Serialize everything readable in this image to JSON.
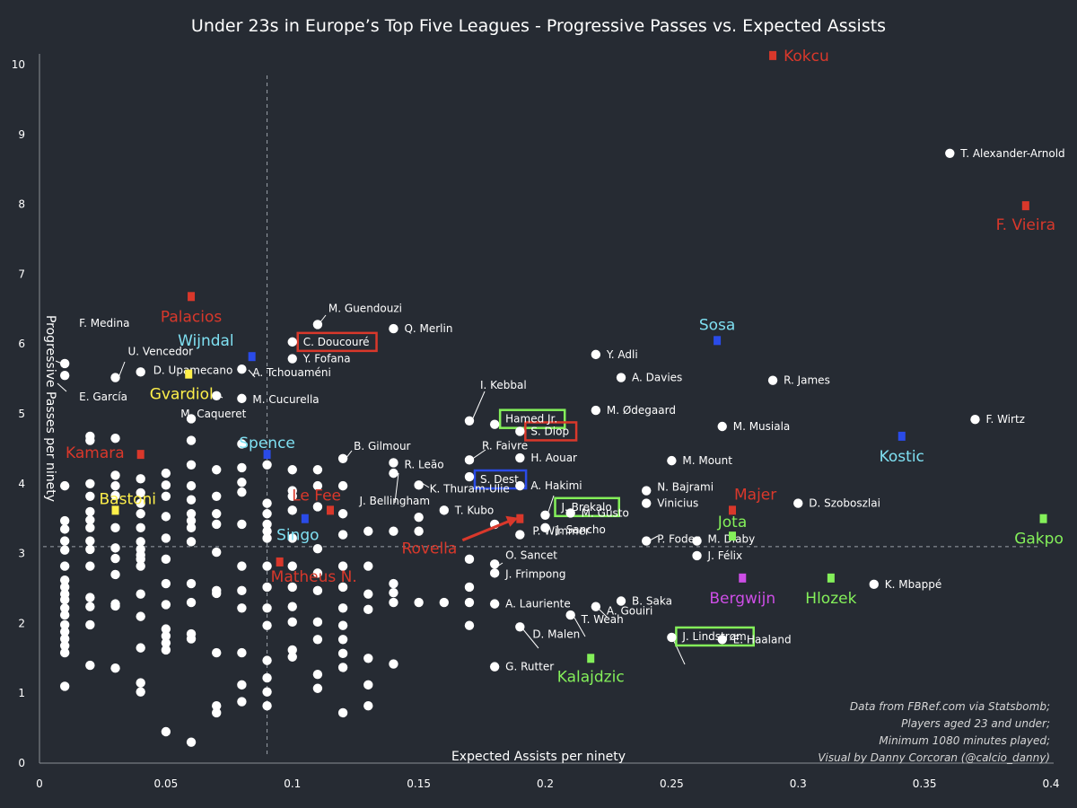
{
  "chart_data": {
    "type": "scatter",
    "title": "Under 23s in Europe’s Top Five Leagues - Progressive Passes vs. Expected Assists",
    "xlabel": "Expected Assists per ninety",
    "ylabel": "Progressive Passes per ninety",
    "xlim": [
      0,
      0.4
    ],
    "ylim": [
      0,
      10.3
    ],
    "x_ticks": [
      "0",
      "0.05",
      "0.1",
      "0.15",
      "0.2",
      "0.25",
      "0.3",
      "0.35",
      "0.4"
    ],
    "y_ticks": [
      "0",
      "1",
      "2",
      "3",
      "4",
      "5",
      "6",
      "7",
      "8",
      "9",
      "10"
    ],
    "reference_lines": {
      "x": 0.09,
      "y": 3.1
    },
    "grid": false,
    "credits": [
      "Data from FBRef.com via Statsbomb;",
      "Players aged 23 and under;",
      "Minimum 1080 minutes played;",
      "Visual by Danny Corcoran (@calcio_danny)"
    ],
    "colors": {
      "background": "#262b33",
      "points": "#ffffff",
      "red": "#d9382b",
      "blue": "#2a4be8",
      "cyan": "#7fe0f2",
      "yellow": "#fff04a",
      "green": "#84f05a",
      "magenta": "#cd4ee6"
    },
    "labeled_points": [
      {
        "name": "T. Alexander-Arnold",
        "x": 0.36,
        "y": 8.73
      },
      {
        "name": "F. Medina",
        "x": 0.01,
        "y": 5.72
      },
      {
        "name": "E. García",
        "x": 0.01,
        "y": 5.55
      },
      {
        "name": "U. Vencedor",
        "x": 0.03,
        "y": 5.52
      },
      {
        "name": "D. Upamecano",
        "x": 0.04,
        "y": 5.6
      },
      {
        "name": "A. Tchouaméni",
        "x": 0.08,
        "y": 5.64
      },
      {
        "name": "M. Caqueret",
        "x": 0.07,
        "y": 5.26
      },
      {
        "name": "M. Cucurella",
        "x": 0.08,
        "y": 5.22
      },
      {
        "name": "M. Guendouzi",
        "x": 0.11,
        "y": 6.28
      },
      {
        "name": "Q. Merlin",
        "x": 0.14,
        "y": 6.22
      },
      {
        "name": "C. Doucouré",
        "x": 0.1,
        "y": 6.03
      },
      {
        "name": "Y. Fofana",
        "x": 0.1,
        "y": 5.79
      },
      {
        "name": "Y. Adli",
        "x": 0.22,
        "y": 5.85
      },
      {
        "name": "A. Davies",
        "x": 0.23,
        "y": 5.52
      },
      {
        "name": "R. James",
        "x": 0.29,
        "y": 5.48
      },
      {
        "name": "I. Kebbal",
        "x": 0.17,
        "y": 4.9
      },
      {
        "name": "Hamed Jr.",
        "x": 0.18,
        "y": 4.85
      },
      {
        "name": "M. Ødegaard",
        "x": 0.22,
        "y": 5.05
      },
      {
        "name": "M. Musiala",
        "x": 0.27,
        "y": 4.82
      },
      {
        "name": "F. Wirtz",
        "x": 0.37,
        "y": 4.92
      },
      {
        "name": "S. Diop",
        "x": 0.19,
        "y": 4.75
      },
      {
        "name": "B. Gilmour",
        "x": 0.12,
        "y": 4.36
      },
      {
        "name": "R. Leão",
        "x": 0.14,
        "y": 4.3
      },
      {
        "name": "R. Faivre",
        "x": 0.17,
        "y": 4.34
      },
      {
        "name": "H. Aouar",
        "x": 0.19,
        "y": 4.37
      },
      {
        "name": "M. Mount",
        "x": 0.25,
        "y": 4.33
      },
      {
        "name": "S. Dest",
        "x": 0.17,
        "y": 4.1
      },
      {
        "name": "A. Hakimi",
        "x": 0.19,
        "y": 3.97
      },
      {
        "name": "K. Thuram-Ulie",
        "x": 0.15,
        "y": 3.98
      },
      {
        "name": "N. Bajrami",
        "x": 0.24,
        "y": 3.9
      },
      {
        "name": "J. Brekalo",
        "x": 0.2,
        "y": 3.55
      },
      {
        "name": "Vinicius",
        "x": 0.24,
        "y": 3.72
      },
      {
        "name": "D. Szoboszlai",
        "x": 0.3,
        "y": 3.72
      },
      {
        "name": "J. Bellingham",
        "x": 0.14,
        "y": 4.15
      },
      {
        "name": "T. Kubo",
        "x": 0.16,
        "y": 3.62
      },
      {
        "name": "M. Gusto",
        "x": 0.21,
        "y": 3.58
      },
      {
        "name": "J. Sancho",
        "x": 0.2,
        "y": 3.37
      },
      {
        "name": "P. Foden",
        "x": 0.24,
        "y": 3.18
      },
      {
        "name": "M. Diaby",
        "x": 0.26,
        "y": 3.18
      },
      {
        "name": "P. Wimmer",
        "x": 0.19,
        "y": 3.27
      },
      {
        "name": "J. Félix",
        "x": 0.26,
        "y": 2.97
      },
      {
        "name": "O. Sancet",
        "x": 0.18,
        "y": 2.85
      },
      {
        "name": "J. Frimpong",
        "x": 0.18,
        "y": 2.72
      },
      {
        "name": "K. Mbappé",
        "x": 0.33,
        "y": 2.56
      },
      {
        "name": "B. Saka",
        "x": 0.23,
        "y": 2.32
      },
      {
        "name": "A. Lauriente",
        "x": 0.18,
        "y": 2.28
      },
      {
        "name": "A. Gouiri",
        "x": 0.22,
        "y": 2.24
      },
      {
        "name": "T. Weah",
        "x": 0.21,
        "y": 2.12
      },
      {
        "name": "D. Malen",
        "x": 0.19,
        "y": 1.95
      },
      {
        "name": "E. Haaland",
        "x": 0.27,
        "y": 1.77
      },
      {
        "name": "J. Lindstrøm",
        "x": 0.25,
        "y": 1.8
      },
      {
        "name": "G. Rutter",
        "x": 0.18,
        "y": 1.38
      }
    ],
    "highlighted_players": [
      {
        "name": "Kokcu",
        "x": 0.29,
        "y": 10.13,
        "color": "red"
      },
      {
        "name": "F. Vieira",
        "x": 0.39,
        "y": 7.98,
        "color": "red"
      },
      {
        "name": "Palacios",
        "x": 0.06,
        "y": 6.68,
        "color": "red"
      },
      {
        "name": "Wijndal",
        "x": 0.084,
        "y": 5.82,
        "color": "blue",
        "label_color": "cyan"
      },
      {
        "name": "Gvardiol",
        "x": 0.059,
        "y": 5.57,
        "color": "yellow"
      },
      {
        "name": "Sosa",
        "x": 0.268,
        "y": 6.05,
        "color": "blue",
        "label_color": "cyan"
      },
      {
        "name": "Kostic",
        "x": 0.341,
        "y": 4.68,
        "color": "blue",
        "label_color": "cyan"
      },
      {
        "name": "Kamara",
        "x": 0.04,
        "y": 4.42,
        "color": "red"
      },
      {
        "name": "Spence",
        "x": 0.09,
        "y": 4.42,
        "color": "blue",
        "label_color": "cyan"
      },
      {
        "name": "Bastoni",
        "x": 0.03,
        "y": 3.62,
        "color": "yellow"
      },
      {
        "name": "Le Fee",
        "x": 0.115,
        "y": 3.62,
        "color": "red"
      },
      {
        "name": "Singo",
        "x": 0.105,
        "y": 3.5,
        "color": "blue",
        "label_color": "cyan"
      },
      {
        "name": "Majer",
        "x": 0.274,
        "y": 3.62,
        "color": "red"
      },
      {
        "name": "Jota",
        "x": 0.274,
        "y": 3.25,
        "color": "green"
      },
      {
        "name": "Gakpo",
        "x": 0.397,
        "y": 3.5,
        "color": "green"
      },
      {
        "name": "Rovella",
        "x": 0.19,
        "y": 3.5,
        "color": "red"
      },
      {
        "name": "Matheus N.",
        "x": 0.095,
        "y": 2.88,
        "color": "red"
      },
      {
        "name": "Bergwijn",
        "x": 0.278,
        "y": 2.65,
        "color": "magenta"
      },
      {
        "name": "Hlozek",
        "x": 0.313,
        "y": 2.65,
        "color": "green"
      },
      {
        "name": "Kalajdzic",
        "x": 0.218,
        "y": 1.5,
        "color": "green"
      }
    ],
    "boxed_labels": [
      {
        "name": "C. Doucouré",
        "color": "red"
      },
      {
        "name": "Hamed Jr.",
        "color": "green"
      },
      {
        "name": "S. Diop",
        "color": "red"
      },
      {
        "name": "S. Dest",
        "color": "blue"
      },
      {
        "name": "J. Brekalo",
        "color": "green"
      },
      {
        "name": "J. Lindstrøm",
        "color": "green"
      }
    ],
    "unlabeled_points": [
      [
        0.01,
        3.97
      ],
      [
        0.01,
        3.47
      ],
      [
        0.01,
        3.35
      ],
      [
        0.01,
        3.18
      ],
      [
        0.01,
        3.05
      ],
      [
        0.01,
        2.82
      ],
      [
        0.01,
        2.62
      ],
      [
        0.01,
        2.52
      ],
      [
        0.01,
        2.42
      ],
      [
        0.01,
        2.34
      ],
      [
        0.01,
        2.22
      ],
      [
        0.01,
        2.12
      ],
      [
        0.01,
        1.98
      ],
      [
        0.01,
        1.88
      ],
      [
        0.01,
        1.78
      ],
      [
        0.01,
        1.68
      ],
      [
        0.01,
        1.58
      ],
      [
        0.01,
        1.1
      ],
      [
        0.02,
        4.68
      ],
      [
        0.02,
        4.62
      ],
      [
        0.02,
        4.0
      ],
      [
        0.02,
        3.82
      ],
      [
        0.02,
        3.6
      ],
      [
        0.02,
        3.48
      ],
      [
        0.02,
        3.37
      ],
      [
        0.02,
        3.18
      ],
      [
        0.02,
        3.06
      ],
      [
        0.02,
        2.82
      ],
      [
        0.02,
        2.37
      ],
      [
        0.02,
        2.24
      ],
      [
        0.02,
        1.98
      ],
      [
        0.02,
        1.4
      ],
      [
        0.03,
        4.65
      ],
      [
        0.03,
        4.12
      ],
      [
        0.03,
        3.97
      ],
      [
        0.03,
        3.83
      ],
      [
        0.03,
        3.37
      ],
      [
        0.03,
        3.08
      ],
      [
        0.03,
        2.93
      ],
      [
        0.03,
        2.7
      ],
      [
        0.03,
        2.28
      ],
      [
        0.03,
        2.25
      ],
      [
        0.03,
        1.36
      ],
      [
        0.04,
        4.07
      ],
      [
        0.04,
        3.87
      ],
      [
        0.04,
        3.72
      ],
      [
        0.04,
        3.57
      ],
      [
        0.04,
        3.37
      ],
      [
        0.04,
        3.17
      ],
      [
        0.04,
        3.06
      ],
      [
        0.04,
        2.98
      ],
      [
        0.04,
        2.92
      ],
      [
        0.04,
        2.82
      ],
      [
        0.04,
        2.42
      ],
      [
        0.04,
        2.1
      ],
      [
        0.04,
        1.65
      ],
      [
        0.04,
        1.15
      ],
      [
        0.04,
        1.02
      ],
      [
        0.05,
        4.15
      ],
      [
        0.05,
        3.98
      ],
      [
        0.05,
        3.82
      ],
      [
        0.05,
        3.53
      ],
      [
        0.05,
        3.22
      ],
      [
        0.05,
        2.92
      ],
      [
        0.05,
        2.57
      ],
      [
        0.05,
        2.27
      ],
      [
        0.05,
        1.92
      ],
      [
        0.05,
        1.82
      ],
      [
        0.05,
        1.72
      ],
      [
        0.05,
        1.62
      ],
      [
        0.05,
        0.45
      ],
      [
        0.06,
        4.93
      ],
      [
        0.06,
        4.62
      ],
      [
        0.06,
        4.27
      ],
      [
        0.06,
        3.97
      ],
      [
        0.06,
        3.77
      ],
      [
        0.06,
        3.57
      ],
      [
        0.06,
        3.47
      ],
      [
        0.06,
        3.37
      ],
      [
        0.06,
        3.17
      ],
      [
        0.06,
        2.57
      ],
      [
        0.06,
        2.3
      ],
      [
        0.06,
        1.85
      ],
      [
        0.06,
        1.78
      ],
      [
        0.06,
        0.3
      ],
      [
        0.07,
        4.2
      ],
      [
        0.07,
        3.82
      ],
      [
        0.07,
        3.57
      ],
      [
        0.07,
        3.42
      ],
      [
        0.07,
        3.02
      ],
      [
        0.07,
        2.47
      ],
      [
        0.07,
        2.43
      ],
      [
        0.07,
        1.58
      ],
      [
        0.07,
        0.82
      ],
      [
        0.07,
        0.72
      ],
      [
        0.08,
        4.57
      ],
      [
        0.08,
        4.23
      ],
      [
        0.08,
        4.02
      ],
      [
        0.08,
        3.88
      ],
      [
        0.08,
        3.42
      ],
      [
        0.08,
        2.82
      ],
      [
        0.08,
        2.47
      ],
      [
        0.08,
        2.22
      ],
      [
        0.08,
        1.58
      ],
      [
        0.08,
        1.12
      ],
      [
        0.08,
        0.88
      ],
      [
        0.09,
        4.27
      ],
      [
        0.09,
        3.72
      ],
      [
        0.09,
        3.57
      ],
      [
        0.09,
        3.42
      ],
      [
        0.09,
        3.32
      ],
      [
        0.09,
        3.22
      ],
      [
        0.09,
        2.82
      ],
      [
        0.09,
        2.52
      ],
      [
        0.09,
        2.22
      ],
      [
        0.09,
        1.97
      ],
      [
        0.09,
        1.47
      ],
      [
        0.09,
        1.22
      ],
      [
        0.09,
        1.02
      ],
      [
        0.09,
        0.82
      ],
      [
        0.1,
        4.2
      ],
      [
        0.1,
        3.9
      ],
      [
        0.1,
        3.82
      ],
      [
        0.1,
        3.62
      ],
      [
        0.1,
        3.22
      ],
      [
        0.1,
        2.82
      ],
      [
        0.1,
        2.52
      ],
      [
        0.1,
        2.24
      ],
      [
        0.1,
        2.02
      ],
      [
        0.1,
        1.62
      ],
      [
        0.1,
        1.52
      ],
      [
        0.11,
        4.2
      ],
      [
        0.11,
        3.97
      ],
      [
        0.11,
        3.67
      ],
      [
        0.11,
        3.07
      ],
      [
        0.11,
        2.72
      ],
      [
        0.11,
        2.47
      ],
      [
        0.11,
        2.02
      ],
      [
        0.11,
        1.77
      ],
      [
        0.11,
        1.27
      ],
      [
        0.11,
        1.07
      ],
      [
        0.12,
        3.97
      ],
      [
        0.12,
        3.57
      ],
      [
        0.12,
        3.27
      ],
      [
        0.12,
        2.82
      ],
      [
        0.12,
        2.52
      ],
      [
        0.12,
        2.22
      ],
      [
        0.12,
        1.97
      ],
      [
        0.12,
        1.77
      ],
      [
        0.12,
        1.57
      ],
      [
        0.12,
        1.37
      ],
      [
        0.12,
        0.72
      ],
      [
        0.13,
        3.32
      ],
      [
        0.13,
        2.82
      ],
      [
        0.13,
        2.42
      ],
      [
        0.13,
        2.2
      ],
      [
        0.13,
        1.5
      ],
      [
        0.13,
        1.12
      ],
      [
        0.13,
        0.82
      ],
      [
        0.14,
        3.32
      ],
      [
        0.14,
        2.57
      ],
      [
        0.14,
        2.44
      ],
      [
        0.14,
        2.3
      ],
      [
        0.14,
        1.42
      ],
      [
        0.15,
        3.52
      ],
      [
        0.15,
        3.32
      ],
      [
        0.15,
        2.3
      ],
      [
        0.16,
        2.3
      ],
      [
        0.17,
        2.92
      ],
      [
        0.17,
        2.52
      ],
      [
        0.17,
        2.3
      ],
      [
        0.17,
        1.97
      ],
      [
        0.18,
        3.42
      ]
    ]
  }
}
